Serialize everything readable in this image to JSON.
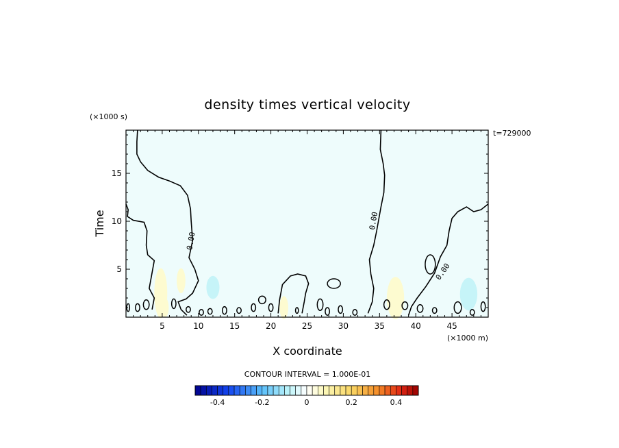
{
  "chart_data": {
    "type": "heatmap",
    "title": "density times vertical velocity",
    "xlabel": "X coordinate",
    "ylabel": "Time",
    "x_unit": "(×1000 m)",
    "y_unit": "(×1000 s)",
    "time_stamp": "t=729000",
    "xlim": [
      0,
      50
    ],
    "ylim": [
      0,
      19.5
    ],
    "x_ticks": [
      5,
      10,
      15,
      20,
      25,
      30,
      35,
      40,
      45
    ],
    "y_ticks": [
      5,
      10,
      15
    ],
    "contour_label": "0.00",
    "contour_interval": "CONTOUR INTERVAL = 1.000E-01",
    "field_background_value": -0.01,
    "colorbar": {
      "min": -0.5,
      "max": 0.5,
      "tick_values": [
        -0.4,
        -0.2,
        0,
        0.2,
        0.4
      ],
      "tick_labels": [
        "-0.4",
        "-0.2",
        "0",
        "0.2",
        "0.4"
      ]
    },
    "colors": {
      "background_field": "#eefcfc",
      "positive_patch": "#fdfbd0",
      "negative_patch": "#c6f4f8"
    }
  }
}
